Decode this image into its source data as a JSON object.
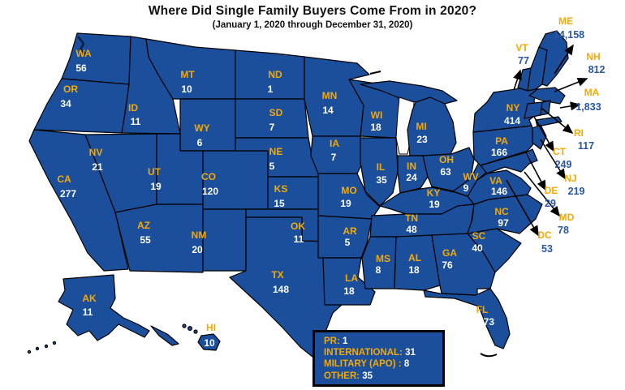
{
  "title": "Where Did Single Family Buyers Come From in 2020?",
  "subtitle": "(January 1, 2020 through December 31, 2020)",
  "colors": {
    "map_fill": "#1B4E9B",
    "state_border": "#000000",
    "state_label_gold": "#F2A90A",
    "state_value_white": "#FFFFFF",
    "callout_value_blue": "#2A57A5",
    "arrow_black": "#000000",
    "legend_fill": "#1B4E9B",
    "title_black": "#111111"
  },
  "states": [
    {
      "abbr": "WA",
      "value": "56"
    },
    {
      "abbr": "OR",
      "value": "34"
    },
    {
      "abbr": "CA",
      "value": "277"
    },
    {
      "abbr": "NV",
      "value": "21"
    },
    {
      "abbr": "ID",
      "value": "11"
    },
    {
      "abbr": "MT",
      "value": "10"
    },
    {
      "abbr": "WY",
      "value": "6"
    },
    {
      "abbr": "UT",
      "value": "19"
    },
    {
      "abbr": "CO",
      "value": "120"
    },
    {
      "abbr": "AZ",
      "value": "55"
    },
    {
      "abbr": "NM",
      "value": "20"
    },
    {
      "abbr": "ND",
      "value": "1"
    },
    {
      "abbr": "SD",
      "value": "7"
    },
    {
      "abbr": "NE",
      "value": "5"
    },
    {
      "abbr": "KS",
      "value": "15"
    },
    {
      "abbr": "OK",
      "value": "11"
    },
    {
      "abbr": "TX",
      "value": "148"
    },
    {
      "abbr": "MN",
      "value": "14"
    },
    {
      "abbr": "IA",
      "value": "7"
    },
    {
      "abbr": "MO",
      "value": "19"
    },
    {
      "abbr": "AR",
      "value": "5"
    },
    {
      "abbr": "LA",
      "value": "18"
    },
    {
      "abbr": "WI",
      "value": "18"
    },
    {
      "abbr": "IL",
      "value": "35"
    },
    {
      "abbr": "MI",
      "value": "23"
    },
    {
      "abbr": "IN",
      "value": "24"
    },
    {
      "abbr": "OH",
      "value": "63"
    },
    {
      "abbr": "KY",
      "value": "19"
    },
    {
      "abbr": "TN",
      "value": "48"
    },
    {
      "abbr": "MS",
      "value": "8"
    },
    {
      "abbr": "AL",
      "value": "18"
    },
    {
      "abbr": "GA",
      "value": "76"
    },
    {
      "abbr": "FL",
      "value": "373"
    },
    {
      "abbr": "SC",
      "value": "40"
    },
    {
      "abbr": "NC",
      "value": "97"
    },
    {
      "abbr": "VA",
      "value": "146"
    },
    {
      "abbr": "WV",
      "value": "9"
    },
    {
      "abbr": "PA",
      "value": "166"
    },
    {
      "abbr": "NY",
      "value": "414"
    },
    {
      "abbr": "AK",
      "value": "11"
    },
    {
      "abbr": "HI",
      "value": "10"
    }
  ],
  "callouts": [
    {
      "abbr": "ME",
      "value": "14,158"
    },
    {
      "abbr": "VT",
      "value": "77"
    },
    {
      "abbr": "NH",
      "value": "812"
    },
    {
      "abbr": "MA",
      "value": "1,833"
    },
    {
      "abbr": "RI",
      "value": "117"
    },
    {
      "abbr": "CT",
      "value": "249"
    },
    {
      "abbr": "NJ",
      "value": "219"
    },
    {
      "abbr": "DE",
      "value": "29"
    },
    {
      "abbr": "MD",
      "value": "78"
    },
    {
      "abbr": "DC",
      "value": "53"
    }
  ],
  "legend": {
    "items": [
      {
        "label": "PR:",
        "value": "1"
      },
      {
        "label": "INTERNATIONAL:",
        "value": "31"
      },
      {
        "label": "MILITARY (APO) :",
        "value": "8"
      },
      {
        "label": "OTHER:",
        "value": "35"
      }
    ]
  }
}
